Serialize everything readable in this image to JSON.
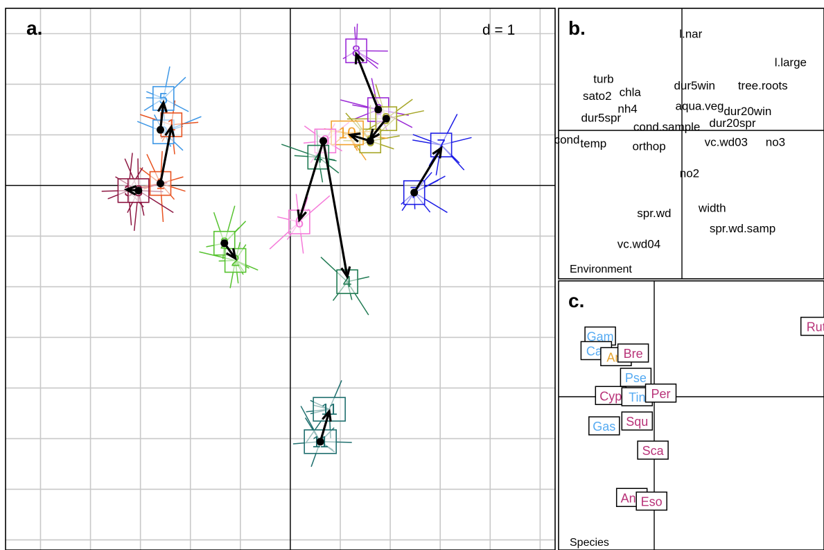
{
  "panels": {
    "a": {
      "letter": "a.",
      "scale": "d = 1"
    },
    "b": {
      "letter": "b.",
      "caption": "Environment"
    },
    "c": {
      "letter": "c.",
      "caption": "Species"
    }
  },
  "chart_data": [
    {
      "type": "scatter",
      "panel": "a",
      "title": "",
      "xlim": [
        -2.85,
        2.65
      ],
      "ylim": [
        -3.6,
        1.75
      ],
      "grid": true,
      "grid_step": 0.5,
      "origin_axes": true,
      "stations": [
        {
          "label": "5",
          "color": "#3d97e6",
          "x": -1.27,
          "y": 0.86
        },
        {
          "label": "9",
          "color": "#3d97e6",
          "x": -1.27,
          "y": 0.53
        },
        {
          "label": "1",
          "color": "#e8521f",
          "x": -1.19,
          "y": 0.6
        },
        {
          "label": "1",
          "color": "#e8521f",
          "x": -1.3,
          "y": 0.02
        },
        {
          "label": "3",
          "color": "#8c1641",
          "x": -1.62,
          "y": -0.05
        },
        {
          "label": "3",
          "color": "#8c1641",
          "x": -1.52,
          "y": -0.05
        },
        {
          "label": "2",
          "color": "#56c22f",
          "x": -0.66,
          "y": -0.57
        },
        {
          "label": "2",
          "color": "#56c22f",
          "x": -0.55,
          "y": -0.74
        },
        {
          "label": "8",
          "color": "#9b2ad6",
          "x": 0.66,
          "y": 1.33
        },
        {
          "label": "6",
          "color": "#9b2ad6",
          "x": 0.88,
          "y": 0.75
        },
        {
          "label": "9",
          "color": "#a6a627",
          "x": 0.96,
          "y": 0.66
        },
        {
          "label": "6",
          "color": "#a6a627",
          "x": 0.8,
          "y": 0.44
        },
        {
          "label": "10",
          "color": "#f2a12c",
          "x": 0.57,
          "y": 0.52
        },
        {
          "label": "9",
          "color": "#f57ad9",
          "x": 0.35,
          "y": 0.44
        },
        {
          "label": "4",
          "color": "#1f7a52",
          "x": 0.28,
          "y": 0.28
        },
        {
          "label": "6",
          "color": "#f57ad9",
          "x": 0.09,
          "y": -0.36
        },
        {
          "label": "4",
          "color": "#1f7a52",
          "x": 0.57,
          "y": -0.95
        },
        {
          "label": "7",
          "color": "#1c1ce6",
          "x": 1.51,
          "y": 0.4
        },
        {
          "label": "7",
          "color": "#1c1ce6",
          "x": 1.24,
          "y": -0.07
        },
        {
          "label": "11",
          "color": "#1f6f6e",
          "x": 0.39,
          "y": -2.21
        },
        {
          "label": "11",
          "color": "#1f6f6e",
          "x": 0.3,
          "y": -2.53
        }
      ],
      "arrows": [
        {
          "from": [
            -1.3,
            0.55
          ],
          "to": [
            -1.27,
            0.82
          ]
        },
        {
          "from": [
            -1.3,
            0.02
          ],
          "to": [
            -1.19,
            0.58
          ]
        },
        {
          "from": [
            -1.52,
            -0.05
          ],
          "to": [
            -1.64,
            -0.04
          ]
        },
        {
          "from": [
            -0.66,
            -0.57
          ],
          "to": [
            -0.55,
            -0.72
          ]
        },
        {
          "from": [
            0.88,
            0.75
          ],
          "to": [
            0.66,
            1.3
          ]
        },
        {
          "from": [
            0.96,
            0.66
          ],
          "to": [
            0.8,
            0.46
          ]
        },
        {
          "from": [
            0.8,
            0.44
          ],
          "to": [
            0.6,
            0.5
          ]
        },
        {
          "from": [
            0.33,
            0.44
          ],
          "to": [
            0.09,
            -0.34
          ]
        },
        {
          "from": [
            0.33,
            0.44
          ],
          "to": [
            0.57,
            -0.9
          ]
        },
        {
          "from": [
            1.24,
            -0.07
          ],
          "to": [
            1.51,
            0.37
          ]
        },
        {
          "from": [
            0.3,
            -2.53
          ],
          "to": [
            0.39,
            -2.23
          ]
        }
      ]
    },
    {
      "type": "scatter",
      "panel": "b",
      "title": "",
      "xlim": [
        -1,
        1
      ],
      "ylim": [
        -1,
        1
      ],
      "points": [
        {
          "label": "l.nar",
          "x": 0.07,
          "y": 0.75
        },
        {
          "label": "l.large",
          "x": 0.86,
          "y": 0.53
        },
        {
          "label": "turb",
          "x": -0.62,
          "y": 0.4
        },
        {
          "label": "dur5win",
          "x": 0.1,
          "y": 0.35
        },
        {
          "label": "tree.roots",
          "x": 0.64,
          "y": 0.35
        },
        {
          "label": "sato2",
          "x": -0.67,
          "y": 0.27
        },
        {
          "label": "chla",
          "x": -0.41,
          "y": 0.3
        },
        {
          "label": "nh4",
          "x": -0.43,
          "y": 0.17
        },
        {
          "label": "aqua.veg",
          "x": 0.14,
          "y": 0.19
        },
        {
          "label": "dur20win",
          "x": 0.52,
          "y": 0.15
        },
        {
          "label": "dur5spr",
          "x": -0.64,
          "y": 0.1
        },
        {
          "label": "dur20spr",
          "x": 0.4,
          "y": 0.06
        },
        {
          "label": "cond.sample",
          "x": -0.12,
          "y": 0.03
        },
        {
          "label": "cond",
          "x": -0.91,
          "y": -0.07
        },
        {
          "label": "temp",
          "x": -0.7,
          "y": -0.1
        },
        {
          "label": "orthop",
          "x": -0.26,
          "y": -0.12
        },
        {
          "label": "vc.wd03",
          "x": 0.35,
          "y": -0.09
        },
        {
          "label": "no3",
          "x": 0.74,
          "y": -0.09
        },
        {
          "label": "no2",
          "x": 0.06,
          "y": -0.33
        },
        {
          "label": "width",
          "x": 0.24,
          "y": -0.6
        },
        {
          "label": "spr.wd",
          "x": -0.22,
          "y": -0.64
        },
        {
          "label": "spr.wd.samp",
          "x": 0.48,
          "y": -0.76
        },
        {
          "label": "vc.wd04",
          "x": -0.34,
          "y": -0.88
        }
      ]
    },
    {
      "type": "scatter",
      "panel": "c",
      "title": "",
      "xlim": [
        -0.6,
        1.4
      ],
      "ylim": [
        -1.3,
        1.0
      ],
      "points": [
        {
          "label": "Gam",
          "color": "#55aaf2",
          "x": -0.41,
          "y": 0.5
        },
        {
          "label": "Car",
          "color": "#55aaf2",
          "x": -0.44,
          "y": 0.38
        },
        {
          "label": "Am",
          "color": "#e6a532",
          "x": -0.29,
          "y": 0.33
        },
        {
          "label": "Bre",
          "color": "#b83278",
          "x": -0.16,
          "y": 0.36
        },
        {
          "label": "Pse",
          "color": "#55aaf2",
          "x": -0.14,
          "y": 0.16
        },
        {
          "label": "Cyp",
          "color": "#b83278",
          "x": -0.33,
          "y": 0.01
        },
        {
          "label": "Tin",
          "color": "#55aaf2",
          "x": -0.13,
          "y": 0.0
        },
        {
          "label": "Per",
          "color": "#b83278",
          "x": 0.05,
          "y": 0.03
        },
        {
          "label": "Gas",
          "color": "#55aaf2",
          "x": -0.38,
          "y": -0.24
        },
        {
          "label": "Squ",
          "color": "#b83278",
          "x": -0.13,
          "y": -0.2
        },
        {
          "label": "Sca",
          "color": "#b83278",
          "x": -0.01,
          "y": -0.44
        },
        {
          "label": "Ang",
          "color": "#b83278",
          "x": -0.17,
          "y": -0.83
        },
        {
          "label": "Eso",
          "color": "#b83278",
          "x": -0.02,
          "y": -0.86
        },
        {
          "label": "Rut",
          "color": "#b83278",
          "x": 1.23,
          "y": 0.58
        }
      ]
    }
  ]
}
